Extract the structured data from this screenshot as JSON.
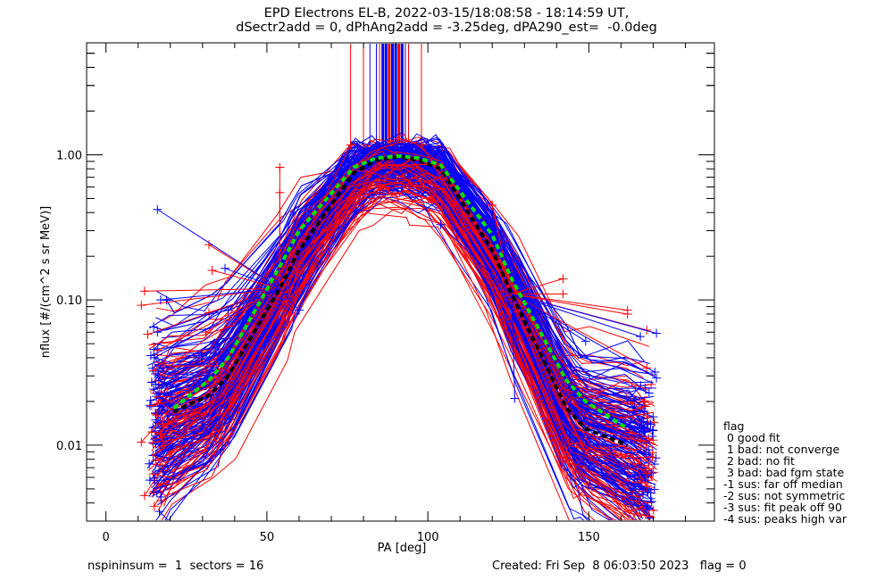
{
  "title": {
    "line1": "EPD Electrons EL-B, 2022-03-15/18:08:58 - 18:14:59 UT,",
    "line2": "dSectr2add = 0, dPhAng2add = -3.25deg, dPA290_est=  -0.0deg"
  },
  "footer": {
    "left": "nspininsum =  1  sectors = 16",
    "right": "Created: Fri Sep  8 06:03:50 2023   flag = 0"
  },
  "legend": {
    "title": "flag",
    "items": [
      " 0 good fit",
      " 1 bad: not converge",
      " 2 bad: no fit",
      " 3 bad: bad fgm state",
      "-1 sus: far off median",
      "-2 sus: not symmetric",
      "-3 sus: fit peak off 90",
      "-4 sus: peaks high var"
    ]
  },
  "colors": {
    "series_a": "#ff0000",
    "series_b": "#0000ff",
    "fit": "#00e000",
    "median": "#000000"
  },
  "chart_data": {
    "type": "line",
    "title": "EPD Electrons EL-B, 2022-03-15/18:08:58 - 18:14:59 UT, dSectr2add = 0, dPhAng2add = -3.25deg, dPA290_est= -0.0deg",
    "xlabel": "PA [deg]",
    "ylabel": "nflux [#/(cm^2 s sr MeV)]",
    "xlim": [
      -6,
      189
    ],
    "ylim": [
      0.003,
      5.9
    ],
    "yscale": "log",
    "x_ticks": [
      0,
      50,
      100,
      150
    ],
    "x_tick_labels": [
      "0",
      "50",
      "100",
      "150"
    ],
    "x_minor_step": 10,
    "y_ticks": [
      0.01,
      0.1,
      1.0
    ],
    "y_tick_labels": [
      "0.01",
      "0.10",
      "1.00"
    ],
    "grid": false,
    "legend_position": "right-bottom outside",
    "pa_bins": [
      16,
      21,
      32,
      38,
      54,
      60,
      77,
      84,
      91,
      97,
      104,
      120,
      126,
      143,
      149,
      162,
      168
    ],
    "series": [
      {
        "name": "median (black dashed)",
        "color": "#000000",
        "x": [
          21,
          32,
          38,
          54,
          60,
          77,
          84,
          91,
          97,
          104,
          120,
          126,
          143,
          149,
          162
        ],
        "y": [
          0.017,
          0.022,
          0.03,
          0.12,
          0.22,
          0.75,
          0.92,
          0.97,
          0.92,
          0.8,
          0.22,
          0.11,
          0.018,
          0.013,
          0.01
        ]
      },
      {
        "name": "fit (green dashed)",
        "color": "#00e000",
        "x": [
          21,
          32,
          38,
          54,
          60,
          77,
          84,
          91,
          97,
          104,
          120,
          126,
          143,
          149,
          162
        ],
        "y": [
          0.018,
          0.028,
          0.04,
          0.17,
          0.3,
          0.82,
          0.95,
          0.98,
          0.95,
          0.85,
          0.28,
          0.14,
          0.028,
          0.02,
          0.013
        ]
      },
      {
        "name": "red spectra envelope upper",
        "color": "#ff0000",
        "x": [
          12,
          21,
          32,
          38,
          54,
          60,
          77,
          84,
          91,
          97,
          104,
          120,
          126,
          143,
          149,
          162,
          168
        ],
        "y": [
          0.011,
          0.014,
          0.018,
          0.022,
          0.07,
          0.13,
          0.6,
          0.8,
          0.88,
          0.85,
          0.75,
          0.3,
          0.15,
          0.03,
          0.02,
          0.013,
          0.011
        ]
      },
      {
        "name": "blue spectra envelope upper",
        "color": "#0000ff",
        "x": [
          16,
          21,
          32,
          38,
          54,
          60,
          77,
          84,
          91,
          97,
          104,
          120,
          126,
          143,
          149,
          162,
          168
        ],
        "y": [
          0.01,
          0.012,
          0.016,
          0.02,
          0.1,
          0.2,
          0.7,
          0.9,
          0.95,
          0.92,
          0.8,
          0.25,
          0.12,
          0.025,
          0.018,
          0.012,
          0.011
        ]
      }
    ],
    "outliers_red": [
      {
        "x": 12,
        "y": 0.115
      },
      {
        "x": 11,
        "y": 0.092
      },
      {
        "x": 13,
        "y": 0.058
      },
      {
        "x": 16,
        "y": 0.045
      },
      {
        "x": 32,
        "y": 0.24
      },
      {
        "x": 33,
        "y": 0.16
      },
      {
        "x": 32,
        "y": 0.082
      },
      {
        "x": 31,
        "y": 0.06
      },
      {
        "x": 54,
        "y": 0.82
      },
      {
        "x": 54,
        "y": 0.55
      },
      {
        "x": 76,
        "y": 1.17
      },
      {
        "x": 98,
        "y": 1.17
      },
      {
        "x": 120,
        "y": 0.45
      },
      {
        "x": 142,
        "y": 0.14
      },
      {
        "x": 142,
        "y": 0.11
      },
      {
        "x": 162,
        "y": 0.085
      },
      {
        "x": 162,
        "y": 0.08
      },
      {
        "x": 168,
        "y": 0.062
      },
      {
        "x": 168,
        "y": 0.034
      },
      {
        "x": 12,
        "y": 0.0045
      },
      {
        "x": 15,
        "y": 0.0038
      },
      {
        "x": 11,
        "y": 0.0105
      }
    ],
    "outliers_blue": [
      {
        "x": 16,
        "y": 0.42
      },
      {
        "x": 17,
        "y": 0.1
      },
      {
        "x": 16,
        "y": 0.06
      },
      {
        "x": 37,
        "y": 0.165
      },
      {
        "x": 38,
        "y": 0.085
      },
      {
        "x": 60,
        "y": 0.085
      },
      {
        "x": 104,
        "y": 0.33
      },
      {
        "x": 127,
        "y": 0.021
      },
      {
        "x": 149,
        "y": 0.052
      },
      {
        "x": 166,
        "y": 0.056
      },
      {
        "x": 171,
        "y": 0.059
      },
      {
        "x": 171,
        "y": 0.029
      },
      {
        "x": 168,
        "y": 0.0037
      },
      {
        "x": 17,
        "y": 0.0044
      },
      {
        "x": 15,
        "y": 0.04
      }
    ],
    "saturated_columns_pa": [
      80,
      82,
      84,
      85,
      86,
      87,
      88,
      89,
      90,
      91,
      92,
      93,
      94
    ]
  }
}
